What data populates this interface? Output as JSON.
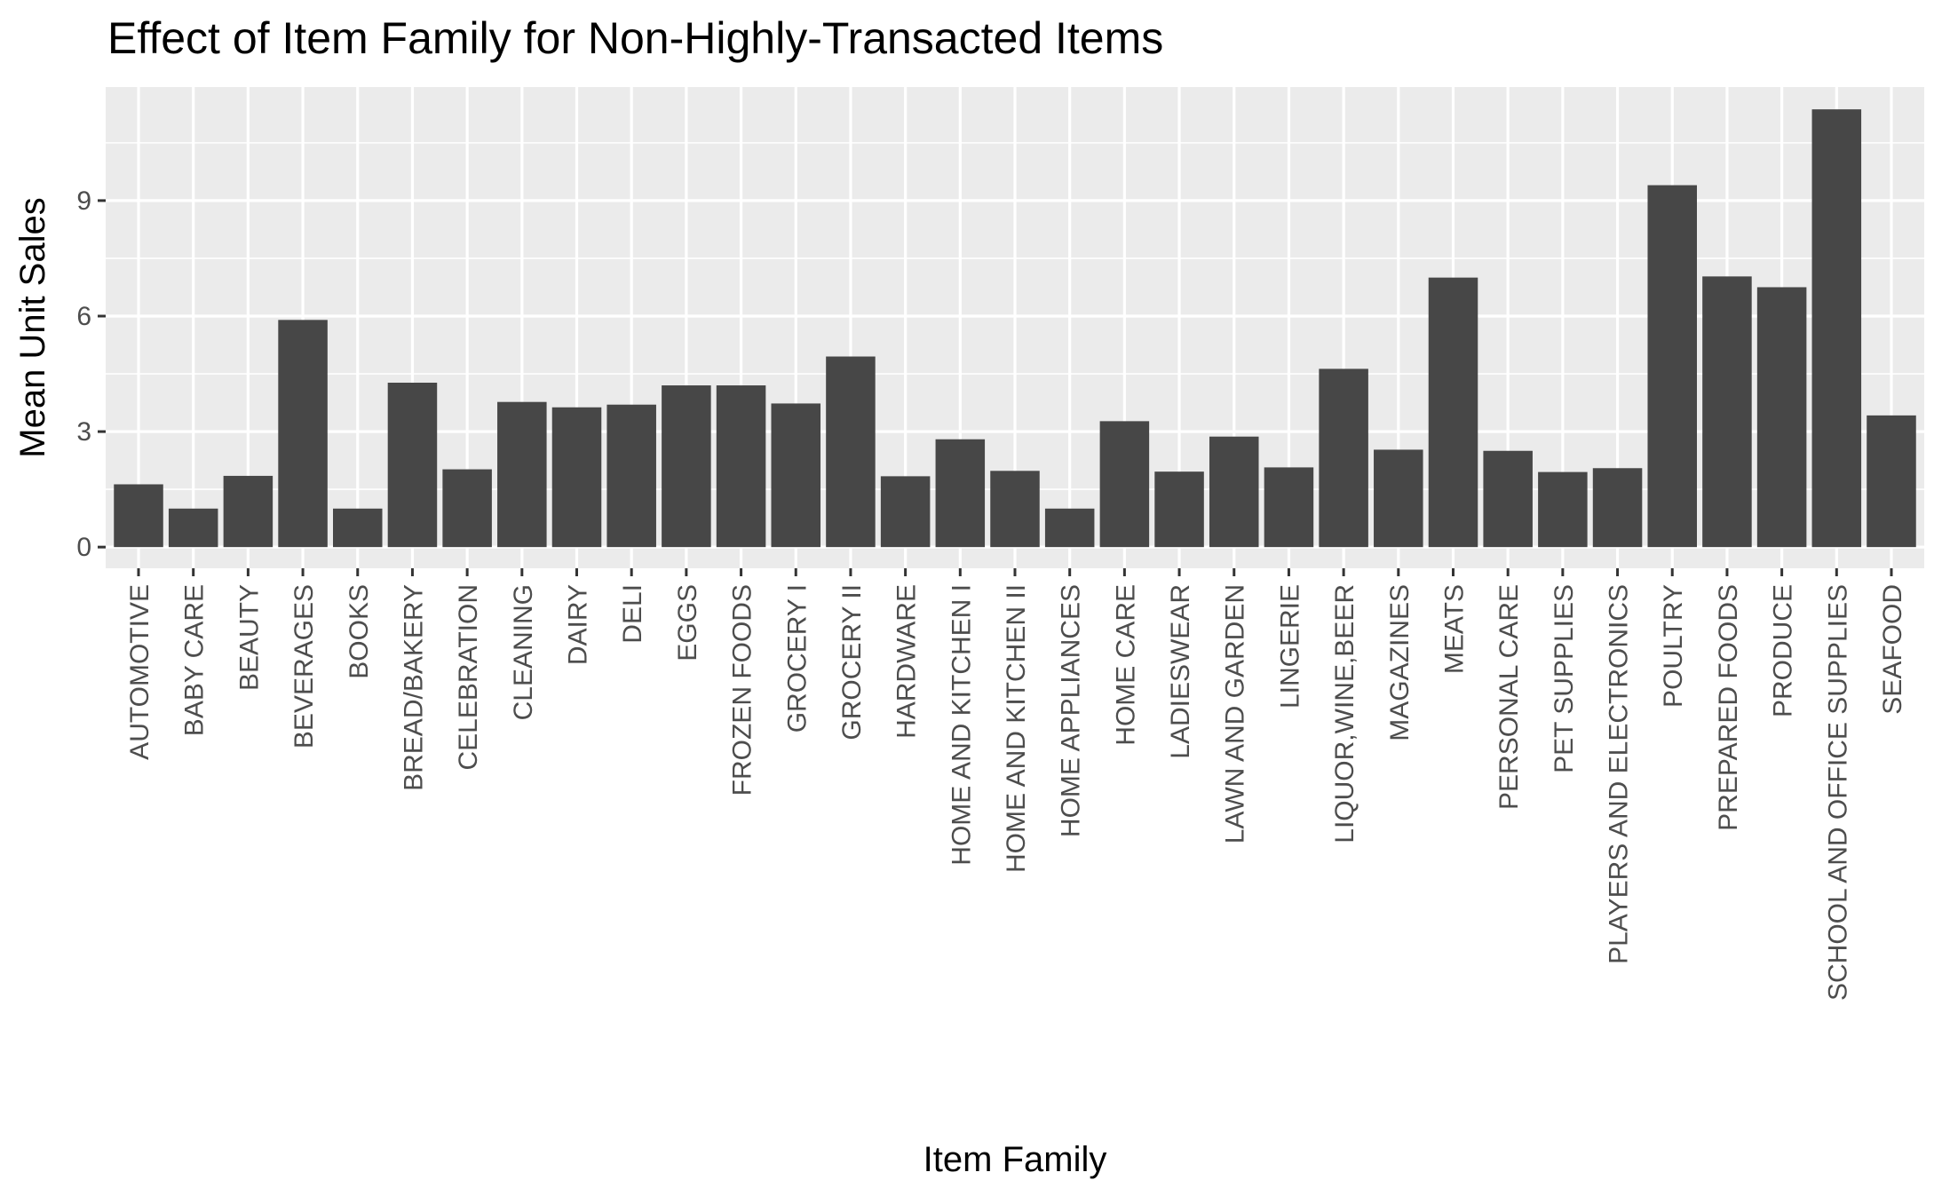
{
  "chart_data": {
    "type": "bar",
    "title": "Effect of Item Family for Non-Highly-Transacted Items",
    "xlabel": "Item Family",
    "ylabel": "Mean Unit Sales",
    "ylim": [
      -0.55,
      11.95
    ],
    "yticks": [
      0,
      3,
      6,
      9
    ],
    "grid": true,
    "legend": "none",
    "bar_color": "#474747",
    "panel_color": "#ebebeb",
    "categories": [
      "AUTOMOTIVE",
      "BABY CARE",
      "BEAUTY",
      "BEVERAGES",
      "BOOKS",
      "BREAD/BAKERY",
      "CELEBRATION",
      "CLEANING",
      "DAIRY",
      "DELI",
      "EGGS",
      "FROZEN FOODS",
      "GROCERY I",
      "GROCERY II",
      "HARDWARE",
      "HOME AND KITCHEN I",
      "HOME AND KITCHEN II",
      "HOME APPLIANCES",
      "HOME CARE",
      "LADIESWEAR",
      "LAWN AND GARDEN",
      "LINGERIE",
      "LIQUOR,WINE,BEER",
      "MAGAZINES",
      "MEATS",
      "PERSONAL CARE",
      "PET SUPPLIES",
      "PLAYERS AND ELECTRONICS",
      "POULTRY",
      "PREPARED FOODS",
      "PRODUCE",
      "SCHOOL AND OFFICE SUPPLIES",
      "SEAFOOD"
    ],
    "values": [
      1.63,
      1.0,
      1.85,
      5.9,
      1.0,
      4.27,
      2.02,
      3.77,
      3.63,
      3.7,
      4.2,
      4.2,
      3.73,
      4.95,
      1.84,
      2.8,
      1.98,
      1.0,
      3.27,
      1.96,
      2.87,
      2.07,
      4.63,
      2.53,
      7.0,
      2.5,
      1.95,
      2.05,
      9.4,
      7.03,
      6.75,
      11.37,
      3.42
    ]
  }
}
